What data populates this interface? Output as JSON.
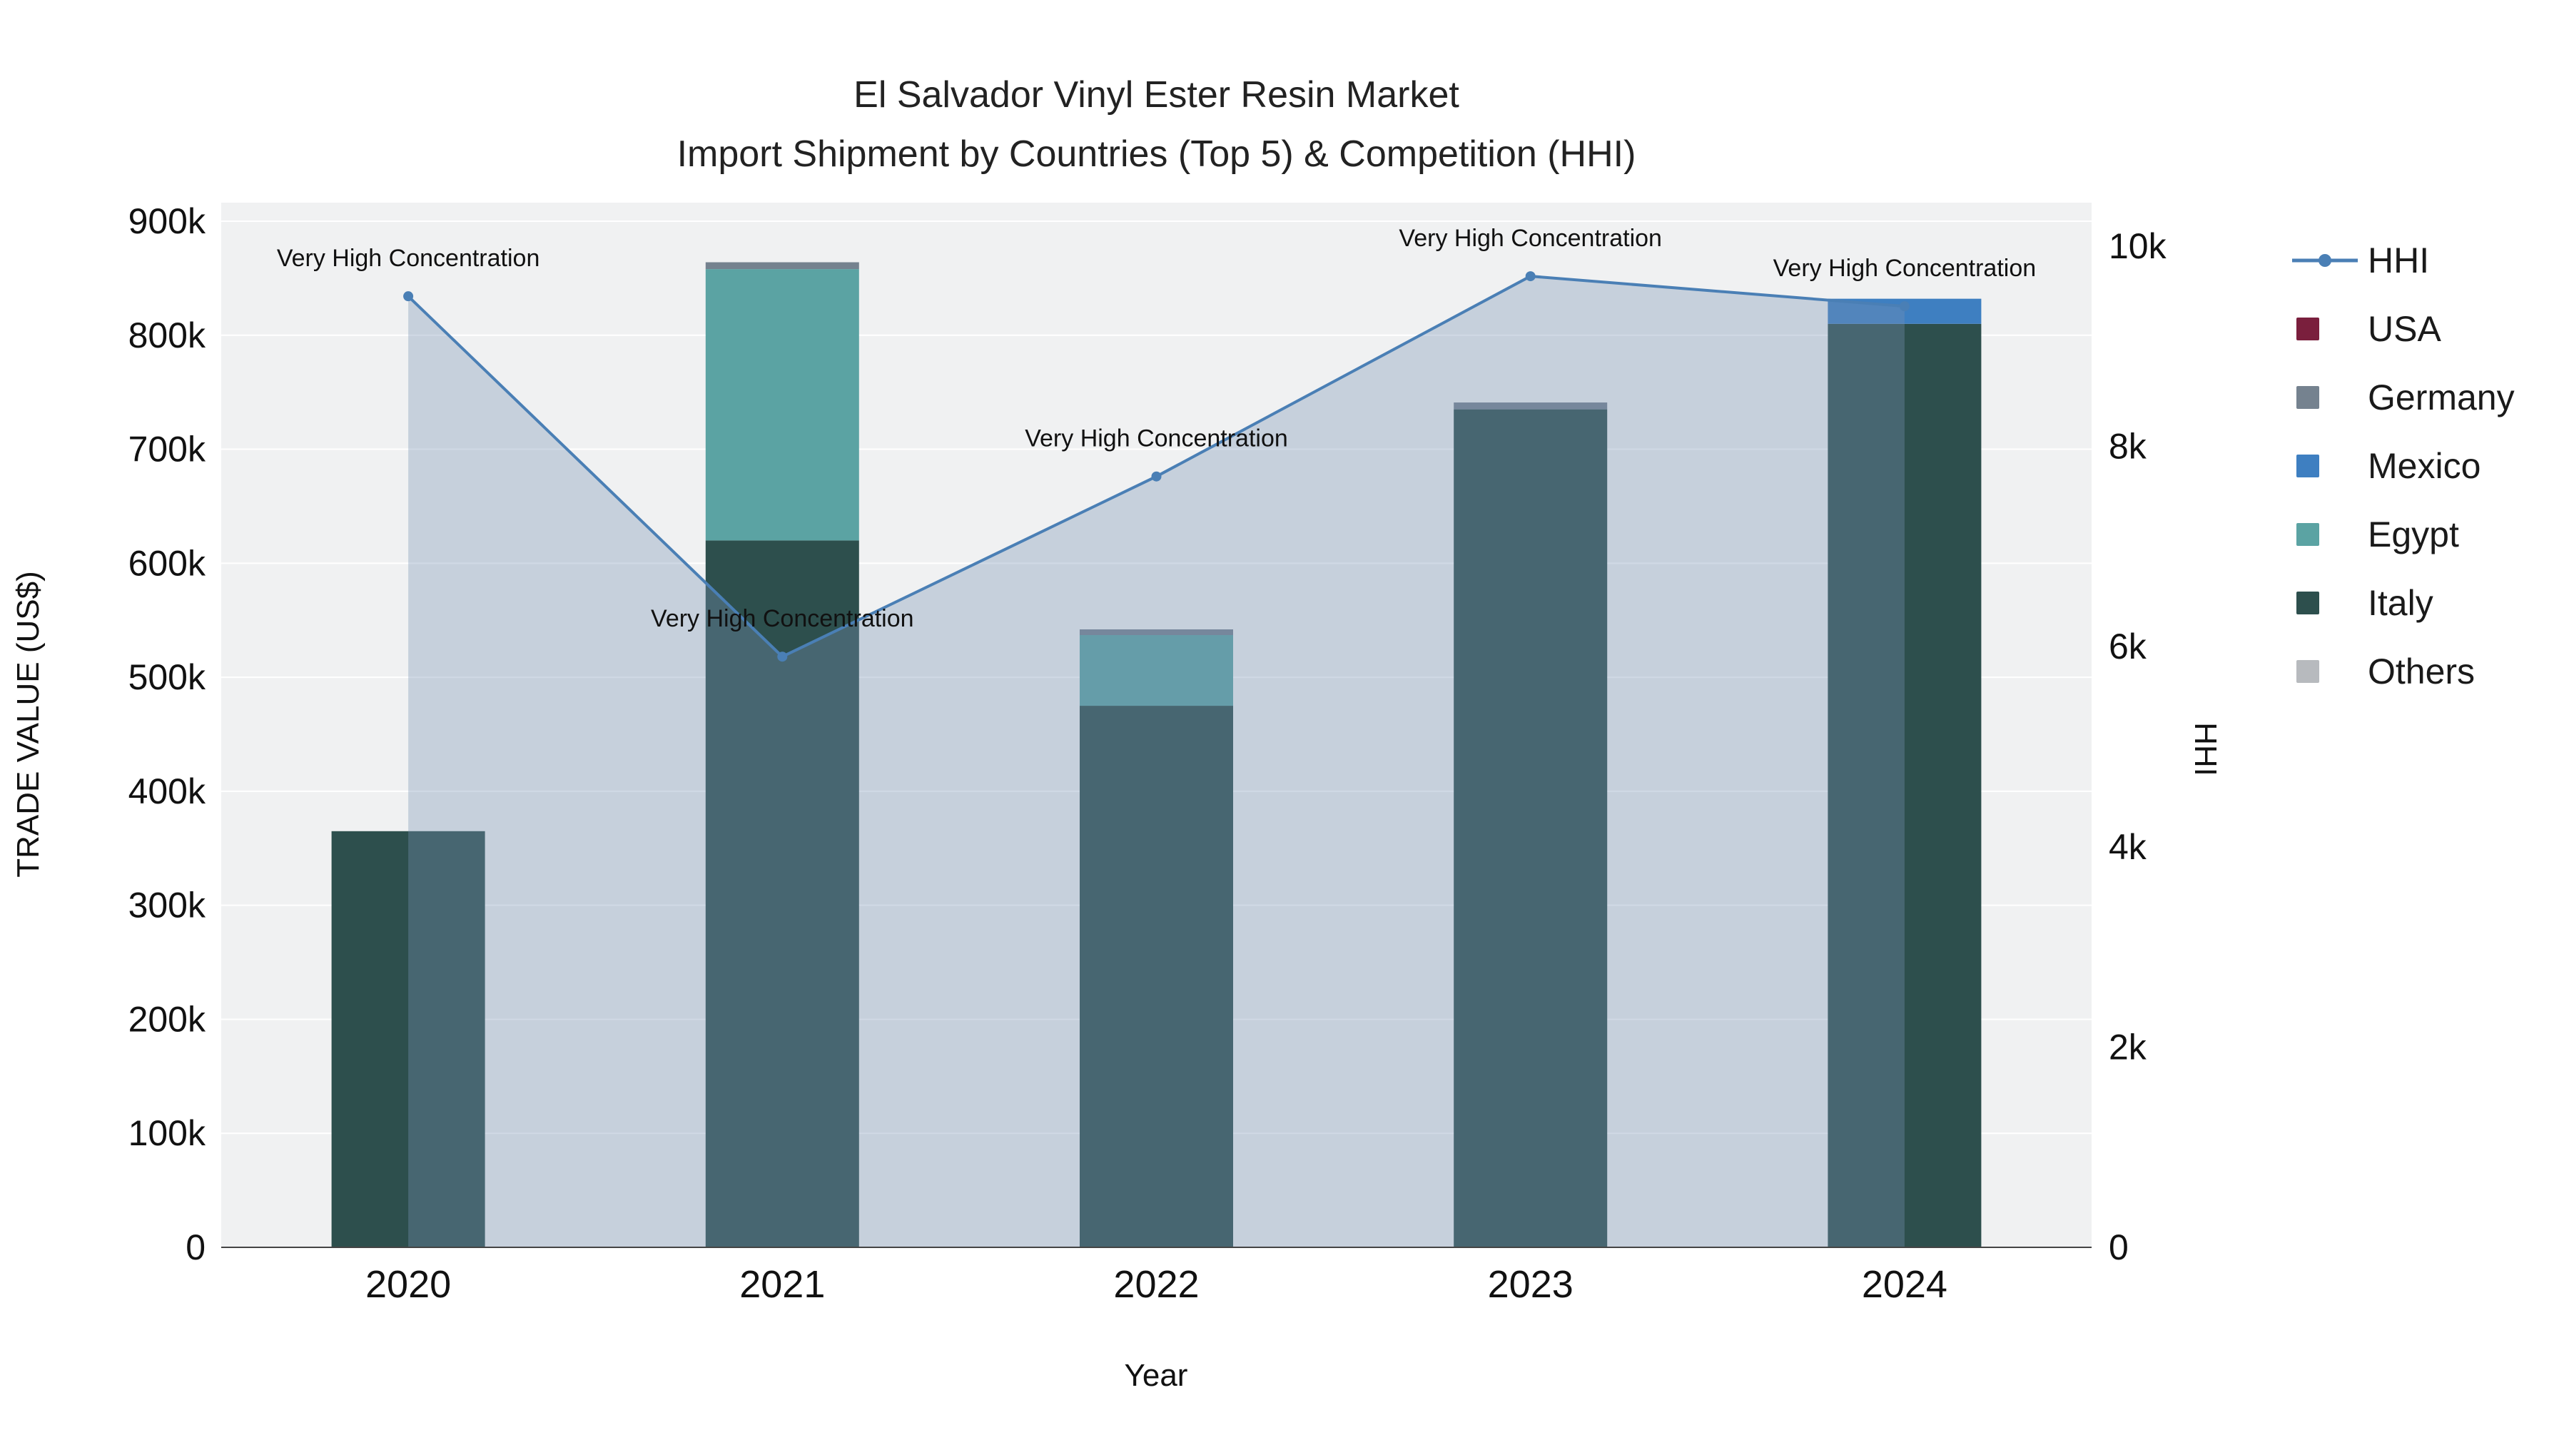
{
  "title": {
    "line1": "El Salvador Vinyl Ester Resin Market",
    "line2": "Import Shipment by Countries (Top 5) & Competition (HHI)"
  },
  "axes": {
    "y_left_label": "TRADE VALUE (US$)",
    "y_right_label": "HHI",
    "x_label": "Year"
  },
  "legend": {
    "items": [
      {
        "label": "HHI",
        "type": "line",
        "color": "#4a7fb5"
      },
      {
        "label": "USA",
        "type": "square",
        "color": "#7a1f3d"
      },
      {
        "label": "Germany",
        "type": "square",
        "color": "#75828f"
      },
      {
        "label": "Mexico",
        "type": "square",
        "color": "#3e7fc1"
      },
      {
        "label": "Egypt",
        "type": "square",
        "color": "#5ba3a3"
      },
      {
        "label": "Italy",
        "type": "square",
        "color": "#2d4f4d"
      },
      {
        "label": "Others",
        "type": "square",
        "color": "#b7babe"
      }
    ]
  },
  "chart_data": {
    "type": "stacked-bar+line",
    "title": "El Salvador Vinyl Ester Resin Market — Import Shipment by Countries (Top 5) & Competition (HHI)",
    "categories": [
      "2020",
      "2021",
      "2022",
      "2023",
      "2024"
    ],
    "bar_series": [
      {
        "name": "Italy",
        "color": "#2d4f4d",
        "values": [
          365000,
          620000,
          475000,
          735000,
          810000
        ]
      },
      {
        "name": "Egypt",
        "color": "#5ba3a3",
        "values": [
          0,
          238000,
          62000,
          0,
          0
        ]
      },
      {
        "name": "Mexico",
        "color": "#3e7fc1",
        "values": [
          0,
          0,
          0,
          0,
          22000
        ]
      },
      {
        "name": "Germany",
        "color": "#75828f",
        "values": [
          0,
          6000,
          5000,
          6000,
          0
        ]
      },
      {
        "name": "USA",
        "color": "#7a1f3d",
        "values": [
          0,
          0,
          0,
          0,
          0
        ]
      },
      {
        "name": "Others",
        "color": "#b7babe",
        "values": [
          0,
          0,
          0,
          0,
          0
        ]
      }
    ],
    "line_series": {
      "name": "HHI",
      "color": "#4a7fb5",
      "fill": "rgba(120,145,180,0.35)",
      "values": [
        9500,
        5900,
        7700,
        9700,
        9400
      ]
    },
    "y_left": {
      "min": 0,
      "max": 900000,
      "tick_step": 100000,
      "tick_labels": [
        "0",
        "100k",
        "200k",
        "300k",
        "400k",
        "500k",
        "600k",
        "700k",
        "800k",
        "900k"
      ]
    },
    "y_right": {
      "min": 0,
      "max": 10000,
      "tick_step": 2000,
      "tick_labels": [
        "0",
        "2k",
        "4k",
        "6k",
        "8k",
        "10k"
      ]
    },
    "grid": true,
    "legend_position": "right",
    "plot_bg": "#f0f1f2",
    "annotations": [
      {
        "year": "2020",
        "text": "Very High Concentration"
      },
      {
        "year": "2021",
        "text": "Very High Concentration"
      },
      {
        "year": "2022",
        "text": "Very High Concentration"
      },
      {
        "year": "2023",
        "text": "Very High Concentration"
      },
      {
        "year": "2024",
        "text": "Very High Concentration"
      }
    ]
  }
}
